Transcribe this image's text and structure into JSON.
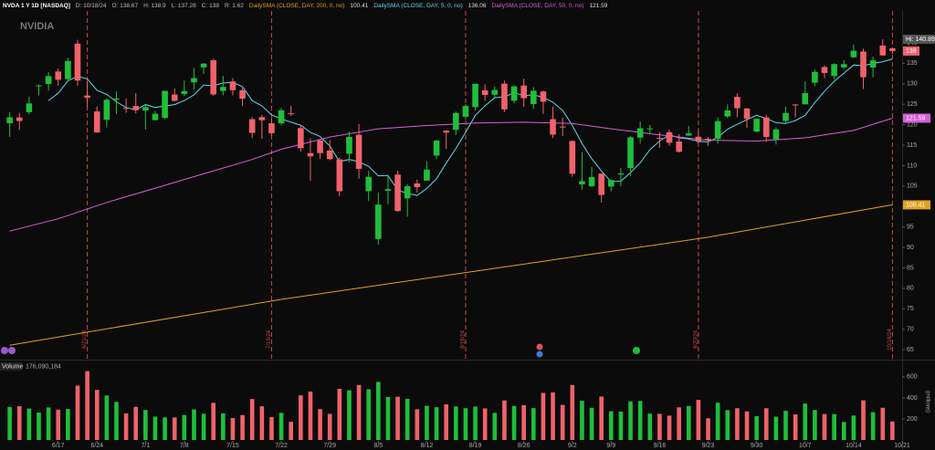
{
  "chart_data": {
    "type": "candlestick",
    "title": "NVDA 1 Y 1D [NASDAQ]",
    "header_fields": [
      "D: 10/18/24",
      "O: 138.67",
      "H: 138.9",
      "L: 137.28",
      "C: 138",
      "R: 1.62"
    ],
    "logo": "NVIDIA",
    "up_color": "#1fbf3a",
    "down_color": "#f0626a",
    "xlim": [
      -1,
      92
    ],
    "xticks": [
      {
        "value": 5,
        "label": "6/17"
      },
      {
        "value": 9,
        "label": "6/24"
      },
      {
        "value": 14,
        "label": "7/1"
      },
      {
        "value": 18,
        "label": "7/8"
      },
      {
        "value": 23,
        "label": "7/15"
      },
      {
        "value": 28,
        "label": "7/22"
      },
      {
        "value": 33,
        "label": "7/29"
      },
      {
        "value": 38,
        "label": "8/5"
      },
      {
        "value": 43,
        "label": "8/12"
      },
      {
        "value": 48,
        "label": "8/19"
      },
      {
        "value": 53,
        "label": "8/26"
      },
      {
        "value": 58,
        "label": "9/2"
      },
      {
        "value": 62,
        "label": "9/9"
      },
      {
        "value": 67,
        "label": "9/16"
      },
      {
        "value": 72,
        "label": "9/23"
      },
      {
        "value": 77,
        "label": "9/30"
      },
      {
        "value": 82,
        "label": "10/7"
      },
      {
        "value": 87,
        "label": "10/14"
      },
      {
        "value": 92,
        "label": "10/21"
      }
    ],
    "ylim": [
      62.8,
      147.8
    ],
    "yticks": [
      65,
      70,
      75,
      80,
      85,
      90,
      95,
      100,
      105,
      110,
      115,
      120,
      125,
      130,
      135,
      140
    ],
    "open": [
      120.37,
      121.77,
      123.06,
      129.39,
      129.96,
      132.99,
      131.14,
      139.8,
      127.12,
      123.24,
      121.2,
      126.13,
      124.1,
      124.58,
      123.47,
      121.13,
      121.66,
      127.38,
      127.49,
      130.35,
      134.03,
      135.75,
      128.26,
      130.56,
      128.44,
      121.35,
      121.85,
      120.35,
      120.35,
      122.78,
      119.17,
      113.04,
      116.19,
      113.69,
      111.52,
      112.9,
      117.53,
      103.76,
      92.06,
      103.84,
      107.81,
      102,
      105.64,
      106.32,
      112.44,
      118.53,
      118.76,
      121.94,
      124.28,
      128.4,
      127.32,
      130.02,
      125.86,
      129.57,
      125.05,
      128.12,
      121.36,
      119.53,
      116.01,
      105.41,
      104.99,
      108.04,
      104.88,
      107.81,
      109.39,
      116.84,
      119.08,
      116.79,
      118.17,
      115.89,
      117.35,
      117.06,
      116.55,
      116.52,
      122.02,
      126.8,
      123.97,
      118.31,
      121.77,
      116.44,
      120.92,
      124.94,
      124.99,
      130.26,
      134.11,
      131.91,
      134.01,
      136.47,
      137.87,
      133.98,
      139.34,
      138.67
    ],
    "high": [
      123.1,
      122.87,
      126.88,
      129.8,
      132.84,
      133.73,
      136.33,
      140.76,
      130.63,
      124.46,
      126.5,
      128.12,
      126.41,
      127.71,
      124.84,
      123.41,
      128.28,
      128.85,
      130.77,
      133.82,
      135.1,
      136.15,
      131.92,
      131.39,
      129.04,
      121.85,
      122.4,
      121.6,
      124.07,
      124.69,
      119.95,
      116.63,
      116.2,
      116.28,
      111.99,
      118.34,
      120.16,
      108.72,
      103.41,
      107.71,
      108.8,
      105.5,
      106.6,
      111.07,
      116.23,
      118.6,
      123.24,
      125,
      130,
      129.88,
      129.35,
      130.75,
      129.6,
      131.26,
      129.2,
      128.33,
      124.43,
      121.75,
      116.21,
      113.27,
      109.65,
      108.15,
      106.55,
      109.4,
      117.19,
      120.79,
      119.96,
      118.18,
      118.8,
      117.7,
      119.66,
      118.62,
      116.99,
      121.8,
      124.94,
      127.67,
      124.03,
      121.5,
      122.44,
      119.38,
      124.36,
      125.04,
      130.64,
      133.48,
      134.52,
      135,
      135.78,
      139.6,
      138.57,
      136.62,
      140.89,
      138.9
    ],
    "low": [
      117.01,
      118.74,
      122.57,
      127.16,
      128.32,
      129.58,
      130.69,
      129.52,
      124.3,
      118.04,
      119.32,
      122.6,
      122.92,
      122.75,
      118.83,
      121.03,
      121.36,
      125.68,
      127.04,
      128.65,
      132.42,
      127.05,
      127.22,
      127.18,
      124.58,
      116.72,
      116.56,
      117.37,
      119.86,
      122.1,
      113.44,
      106.3,
      111.58,
      111.3,
      102.54,
      110.88,
      106.81,
      101.37,
      90.69,
      100.55,
      98.69,
      97.52,
      103.43,
      106.26,
      111.58,
      114.07,
      117.47,
      121.18,
      123.42,
      125.89,
      126.66,
      123.1,
      125.22,
      124.37,
      123.88,
      122.64,
      116.71,
      117.22,
      107.29,
      104.12,
      104.76,
      100.95,
      103.69,
      104.95,
      107.42,
      115.38,
      117.6,
      114.36,
      114.83,
      113.22,
      117.25,
      115.39,
      114.86,
      115.38,
      121.61,
      121.8,
      119.26,
      118.15,
      115.79,
      115.14,
      120.34,
      121.83,
      124.95,
      129.42,
      131.38,
      131,
      133.66,
      136.3,
      128.74,
      131.58,
      136.87,
      137.28
    ],
    "close": [
      121.79,
      120.91,
      125.2,
      129.61,
      131.88,
      130.98,
      135.58,
      130.78,
      126.57,
      118.11,
      126.09,
      126.4,
      123.99,
      123.54,
      124.3,
      122.67,
      128.28,
      125.83,
      128.2,
      131.38,
      134.91,
      127.4,
      129.24,
      128.44,
      126.36,
      117.99,
      121.09,
      117.93,
      123.54,
      122.59,
      114.25,
      112.28,
      113.06,
      111.59,
      103.73,
      117.02,
      109.21,
      107.27,
      100.45,
      104.25,
      98.91,
      104.97,
      104.75,
      109.02,
      116.14,
      118.08,
      122.86,
      124.58,
      130,
      127.25,
      128.5,
      123.74,
      129.37,
      126.46,
      128.3,
      125.61,
      117.59,
      119.37,
      108,
      106.21,
      107.21,
      102.83,
      106.47,
      108.1,
      116.91,
      119.14,
      119.1,
      116.78,
      115.59,
      113.37,
      117.87,
      116,
      116.26,
      120.87,
      123.51,
      124.04,
      121.4,
      121.44,
      117,
      118.85,
      122.85,
      124.92,
      127.72,
      132.89,
      132.65,
      134.81,
      134.8,
      138.07,
      131.6,
      135.72,
      136.93,
      138
    ],
    "overlays": [
      {
        "name": "DailySMA (CLOSE, DAY, 200, 0, no)",
        "value_label": "100.41",
        "color": "#e0a020",
        "x": [
          0,
          28,
          48,
          72,
          91
        ],
        "values": [
          66.1,
          77.3,
          84.2,
          92.5,
          100.41
        ]
      },
      {
        "name": "DailySMA (CLOSE, DAY, 5, 0, no)",
        "value_label": "136.06",
        "color": "#5fd7e8",
        "x": [
          4,
          5,
          6,
          7,
          8,
          9,
          10,
          11,
          12,
          13,
          14,
          15,
          16,
          17,
          18,
          19,
          20,
          21,
          22,
          23,
          24,
          25,
          26,
          27,
          28,
          29,
          30,
          31,
          32,
          33,
          34,
          35,
          36,
          37,
          38,
          39,
          40,
          41,
          42,
          43,
          44,
          45,
          46,
          47,
          48,
          49,
          50,
          51,
          52,
          53,
          54,
          55,
          56,
          57,
          58,
          59,
          60,
          61,
          62,
          63,
          64,
          65,
          66,
          67,
          68,
          69,
          70,
          71,
          72,
          73,
          74,
          75,
          76,
          77,
          78,
          79,
          80,
          81,
          82,
          83,
          84,
          85,
          86,
          87,
          88,
          89,
          90,
          91
        ],
        "values": [
          125.9,
          127.7,
          130.7,
          131.8,
          131.2,
          128.4,
          127.4,
          125.6,
          124.2,
          123.6,
          124.9,
          124.2,
          124.6,
          124.9,
          125.9,
          127.3,
          129.7,
          129.5,
          130.2,
          130.3,
          129.3,
          125.9,
          124.6,
          122.4,
          121.4,
          120.6,
          119.9,
          118.1,
          117.1,
          114.8,
          111,
          111.5,
          110.9,
          109.8,
          107.5,
          107.6,
          104,
          103.2,
          102.7,
          104.4,
          106.8,
          110.6,
          114.2,
          118.1,
          122.3,
          124.6,
          126.6,
          126.8,
          127.8,
          127.1,
          127.3,
          126.7,
          125.5,
          123.5,
          119.8,
          115.4,
          111.7,
          108.7,
          106.1,
          106.2,
          108.3,
          110.7,
          113.9,
          116,
          117.5,
          116.8,
          116.5,
          115.9,
          115.8,
          116.9,
          118.9,
          120.1,
          121.2,
          122.3,
          121.5,
          120.5,
          120.3,
          121,
          122.3,
          125.4,
          128.2,
          130.6,
          132.6,
          134.6,
          134.4,
          135,
          135.4,
          136.06
        ]
      },
      {
        "name": "DailySMA (CLOSE, DAY, 50, 0, no)",
        "value_label": "121.59",
        "color": "#d65fd6",
        "x": [
          0,
          5,
          10,
          15,
          20,
          25,
          28,
          33,
          38,
          43,
          48,
          53,
          58,
          62,
          67,
          72,
          77,
          82,
          87,
          91
        ],
        "values": [
          94,
          97,
          101,
          104.5,
          108,
          111.5,
          114,
          117,
          119,
          119.8,
          120.4,
          120.6,
          120.3,
          119,
          117.5,
          116.2,
          116,
          116.8,
          118.6,
          121.59
        ]
      }
    ],
    "price_labels": [
      {
        "value": 140.89,
        "label": "Hi: 140.89",
        "color": "#555555"
      },
      {
        "value": 138,
        "label": "138",
        "color": "#f0626a"
      },
      {
        "value": 121.59,
        "label": "121.59",
        "color": "#d65fd6"
      },
      {
        "value": 100.41,
        "label": "100.41",
        "color": "#e0a020"
      }
    ],
    "events": [
      {
        "value": 8,
        "label": "6/21/24"
      },
      {
        "value": 27,
        "label": "7/19/24"
      },
      {
        "value": 47,
        "label": "8/16/24"
      },
      {
        "value": 71,
        "label": "9/20/24"
      },
      {
        "value": 91,
        "label": "10/18/24"
      }
    ],
    "volume": {
      "title": "Volume",
      "last_label": "176,090,184",
      "axis_label": "(millions)",
      "ylim": [
        0,
        738
      ],
      "yticks": [
        200,
        400,
        600
      ],
      "values": [
        314,
        321,
        299,
        260,
        309,
        288,
        294,
        517,
        655,
        476,
        423,
        362,
        253,
        315,
        285,
        222,
        215,
        214,
        237,
        290,
        249,
        353,
        253,
        208,
        237,
        390,
        320,
        217,
        258,
        173,
        425,
        460,
        294,
        248,
        486,
        473,
        523,
        482,
        552,
        409,
        411,
        391,
        292,
        325,
        312,
        339,
        318,
        302,
        318,
        300,
        257,
        376,
        323,
        331,
        303,
        448,
        453,
        333,
        521,
        372,
        306,
        413,
        273,
        269,
        367,
        370,
        251,
        248,
        231,
        310,
        323,
        382,
        206,
        354,
        284,
        302,
        271,
        227,
        302,
        221,
        277,
        243,
        346,
        285,
        246,
        246,
        170,
        232,
        377,
        264,
        306,
        176.09
      ]
    }
  }
}
